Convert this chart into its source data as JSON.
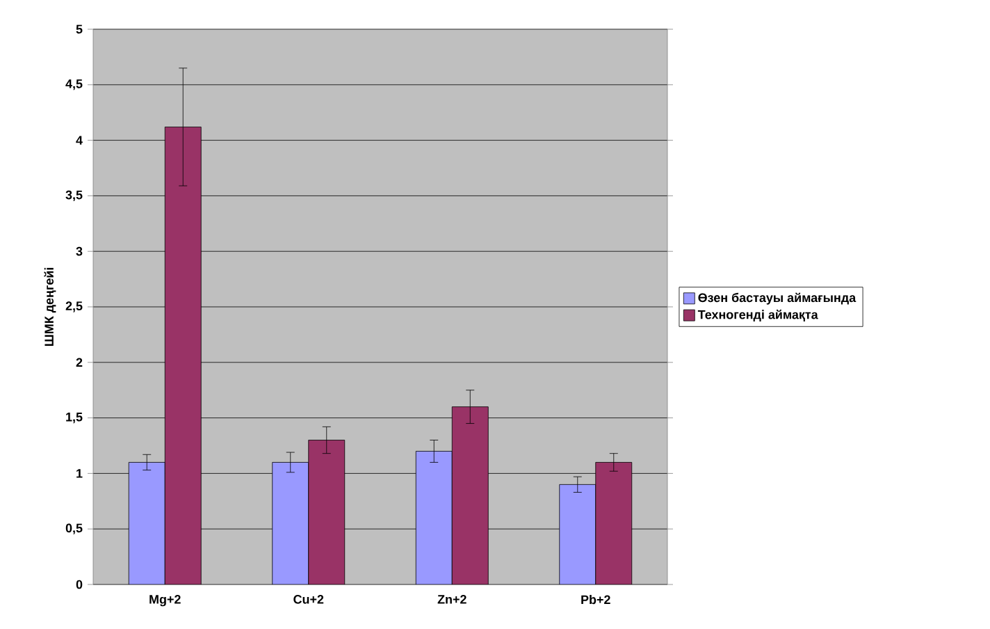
{
  "chart_data": {
    "type": "bar",
    "ylabel": "ШМК деңгейі",
    "categories": [
      "Mg+2",
      "Cu+2",
      "Zn+2",
      "Pb+2"
    ],
    "series": [
      {
        "name": "Өзен бастауы аймағында",
        "color": "#9999ff",
        "values": [
          1.1,
          1.1,
          1.2,
          0.9
        ],
        "errors": [
          0.07,
          0.09,
          0.1,
          0.07
        ]
      },
      {
        "name": "Техногенді аймақта",
        "color": "#993366",
        "values": [
          4.12,
          1.3,
          1.6,
          1.1
        ],
        "errors": [
          0.53,
          0.12,
          0.15,
          0.08
        ]
      }
    ],
    "ylim": [
      0,
      5
    ],
    "yticks": [
      0,
      {
        "value": 0.5,
        "label": "0,5"
      },
      1,
      {
        "value": 1.5,
        "label": "1,5"
      },
      2,
      {
        "value": 2.5,
        "label": "2,5"
      },
      3,
      {
        "value": 3.5,
        "label": "3,5"
      },
      4,
      {
        "value": 4.5,
        "label": "4,5"
      },
      5
    ],
    "grid": "y",
    "legend": "right"
  }
}
